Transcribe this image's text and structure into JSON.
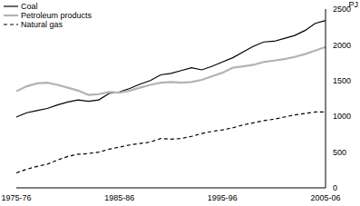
{
  "chart_data": {
    "type": "line",
    "y_label": "PJ",
    "categories": [
      "1975-76",
      null,
      null,
      null,
      null,
      null,
      null,
      null,
      null,
      null,
      "1985-86",
      null,
      null,
      null,
      null,
      null,
      null,
      null,
      null,
      null,
      "1995-96",
      null,
      null,
      null,
      null,
      null,
      null,
      null,
      null,
      null,
      "2005-06"
    ],
    "series": [
      {
        "name": "Coal",
        "color": "#000000",
        "line_style": "solid",
        "values": [
          990,
          1050,
          1080,
          1110,
          1160,
          1200,
          1230,
          1210,
          1230,
          1320,
          1340,
          1390,
          1450,
          1500,
          1580,
          1600,
          1640,
          1680,
          1650,
          1700,
          1760,
          1820,
          1900,
          1980,
          2040,
          2050,
          2090,
          2130,
          2200,
          2300,
          2340
        ]
      },
      {
        "name": "Petroleum products",
        "color": "#b3b3b3",
        "line_style": "solid",
        "values": [
          1350,
          1420,
          1460,
          1470,
          1440,
          1400,
          1360,
          1300,
          1310,
          1340,
          1330,
          1360,
          1400,
          1440,
          1470,
          1480,
          1470,
          1480,
          1510,
          1560,
          1610,
          1680,
          1700,
          1720,
          1760,
          1780,
          1800,
          1830,
          1870,
          1920,
          1970
        ]
      },
      {
        "name": "Natural gas",
        "color": "#000000",
        "line_style": "dashed",
        "values": [
          210,
          260,
          300,
          330,
          390,
          440,
          470,
          480,
          500,
          540,
          570,
          600,
          620,
          640,
          690,
          680,
          690,
          720,
          760,
          790,
          810,
          840,
          880,
          910,
          940,
          960,
          990,
          1020,
          1040,
          1060,
          1060
        ]
      }
    ],
    "ylim": [
      0,
      2500
    ],
    "yticks": [
      0,
      500,
      1000,
      1500,
      2000,
      2500
    ],
    "grid": false,
    "legend": "upper left"
  }
}
